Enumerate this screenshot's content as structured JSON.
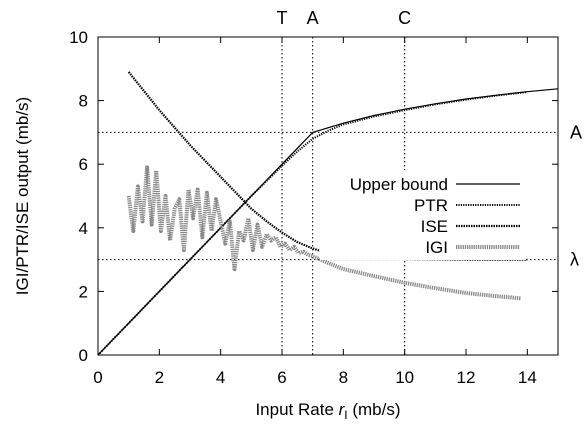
{
  "chart_data": {
    "type": "line",
    "title": "",
    "xlabel": "Input Rate",
    "xlabel_symbol": "r",
    "xlabel_subscript": "I",
    "xlabel_unit": "(mb/s)",
    "ylabel": "IGI/PTR/ISE output (mb/s)",
    "xlim": [
      0,
      15
    ],
    "ylim": [
      0,
      10
    ],
    "x_ticks": [
      0,
      2,
      4,
      6,
      8,
      10,
      12,
      14
    ],
    "y_ticks": [
      0,
      2,
      4,
      6,
      8,
      10
    ],
    "grid": false,
    "legend_position": "middle-right",
    "vertical_markers": [
      {
        "label": "T",
        "x": 6
      },
      {
        "label": "A",
        "x": 7
      },
      {
        "label": "C",
        "x": 10
      }
    ],
    "horizontal_markers": [
      {
        "label": "A",
        "y": 7
      },
      {
        "label": "λ",
        "y": 3
      }
    ],
    "series": [
      {
        "name": "Upper bound",
        "style": "solid",
        "color": "#000000",
        "x": [
          0,
          1,
          2,
          3,
          4,
          5,
          6,
          7,
          8,
          9,
          10,
          11,
          12,
          13,
          14,
          15
        ],
        "y": [
          0,
          1,
          2,
          3,
          4,
          5,
          6,
          7,
          7.29,
          7.53,
          7.73,
          7.9,
          8.05,
          8.17,
          8.28,
          8.37
        ]
      },
      {
        "name": "PTR",
        "style": "dotted",
        "color": "#000000",
        "x": [
          0,
          1,
          2,
          3,
          4,
          5,
          6,
          6.5,
          7,
          7.5,
          8,
          9,
          10,
          11,
          12,
          13,
          14
        ],
        "y": [
          0,
          1,
          2,
          3,
          4,
          5,
          5.95,
          6.4,
          6.8,
          7.05,
          7.25,
          7.5,
          7.7,
          7.88,
          8.03,
          8.16,
          8.27
        ]
      },
      {
        "name": "ISE",
        "style": "dotted-dense",
        "color": "#000000",
        "x": [
          1,
          2,
          3,
          4,
          5,
          5.5,
          6,
          6.5,
          7,
          7.5,
          8,
          9,
          10,
          11,
          12,
          13,
          14
        ],
        "y": [
          8.9,
          7.7,
          6.6,
          5.6,
          4.6,
          4.2,
          3.85,
          3.55,
          3.35,
          3.2,
          3.12,
          3.05,
          3.02,
          3.01,
          3.0,
          3.0,
          3.0
        ]
      },
      {
        "name": "IGI",
        "style": "thick-gray-dotted",
        "color": "#888888",
        "x": [
          1,
          1.15,
          1.3,
          1.45,
          1.6,
          1.75,
          1.9,
          2.05,
          2.2,
          2.35,
          2.5,
          2.65,
          2.8,
          2.95,
          3.1,
          3.25,
          3.4,
          3.55,
          3.7,
          3.85,
          4.0,
          4.15,
          4.3,
          4.45,
          4.6,
          4.75,
          4.9,
          5.05,
          5.2,
          5.35,
          5.5,
          5.65,
          5.8,
          5.95,
          6.1,
          6.25,
          6.4,
          6.55,
          6.7,
          6.85,
          7.0,
          7.5,
          8.0,
          9.0,
          10.0,
          11.0,
          12.0,
          13.0,
          13.8
        ],
        "y": [
          5.0,
          3.9,
          5.3,
          4.2,
          5.9,
          4.1,
          5.8,
          3.9,
          5.0,
          3.6,
          4.6,
          4.9,
          3.3,
          5.2,
          4.3,
          5.2,
          3.7,
          5.1,
          3.9,
          4.9,
          4.2,
          3.5,
          4.2,
          2.7,
          3.9,
          3.6,
          4.3,
          3.3,
          4.1,
          3.4,
          3.8,
          3.6,
          3.7,
          3.4,
          3.5,
          3.3,
          3.4,
          3.2,
          3.25,
          3.15,
          3.1,
          2.9,
          2.7,
          2.48,
          2.27,
          2.1,
          1.95,
          1.85,
          1.78
        ]
      }
    ]
  }
}
